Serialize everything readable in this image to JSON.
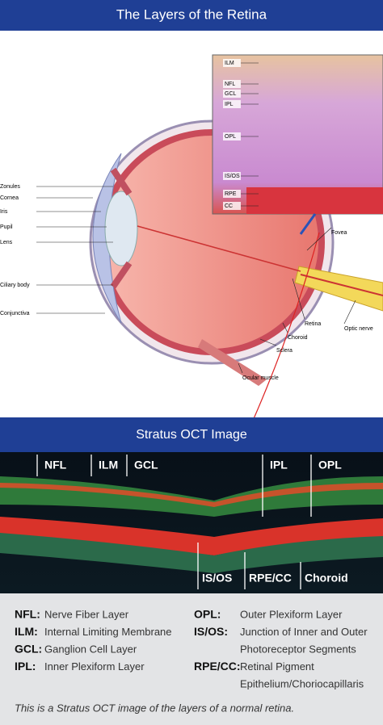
{
  "header": {
    "title": "The Layers of the Retina"
  },
  "eye_diagram": {
    "left_labels": [
      "Zonules",
      "Cornea",
      "Iris",
      "Pupil",
      "Lens",
      "Ciliary body",
      "Conjunctiva"
    ],
    "right_labels": [
      "Fovea",
      "Retina",
      "Choroid",
      "Sclera",
      "Optic nerve",
      "Ocular muscle"
    ],
    "inset_labels": [
      "ILM",
      "NFL",
      "GCL",
      "IPL",
      "OPL",
      "IS/OS",
      "RPE",
      "CC"
    ]
  },
  "oct_section": {
    "title": "Stratus OCT Image",
    "top_labels": [
      "NFL",
      "ILM",
      "GCL",
      "IPL",
      "OPL"
    ],
    "bottom_labels": [
      "IS/OS",
      "RPE/CC",
      "Choroid"
    ]
  },
  "legend": {
    "left": [
      {
        "abbr": "NFL:",
        "text": [
          "Nerve Fiber Layer"
        ]
      },
      {
        "abbr": "ILM:",
        "text": [
          "Internal Limiting Membrane"
        ]
      },
      {
        "abbr": "GCL:",
        "text": [
          "Ganglion Cell Layer"
        ]
      },
      {
        "abbr": "IPL:",
        "text": [
          "Inner Plexiform Layer"
        ]
      }
    ],
    "right": [
      {
        "abbr": "OPL:",
        "text": [
          "Outer Plexiform Layer"
        ]
      },
      {
        "abbr": "IS/OS:",
        "text": [
          "Junction of Inner and Outer",
          "Photoreceptor Segments"
        ]
      },
      {
        "abbr": "RPE/CC:",
        "text": [
          "Retinal Pigment",
          "Epithelium/Choriocapillaris"
        ]
      }
    ]
  },
  "caption": "This is a Stratus OCT image of the layers of a normal retina."
}
